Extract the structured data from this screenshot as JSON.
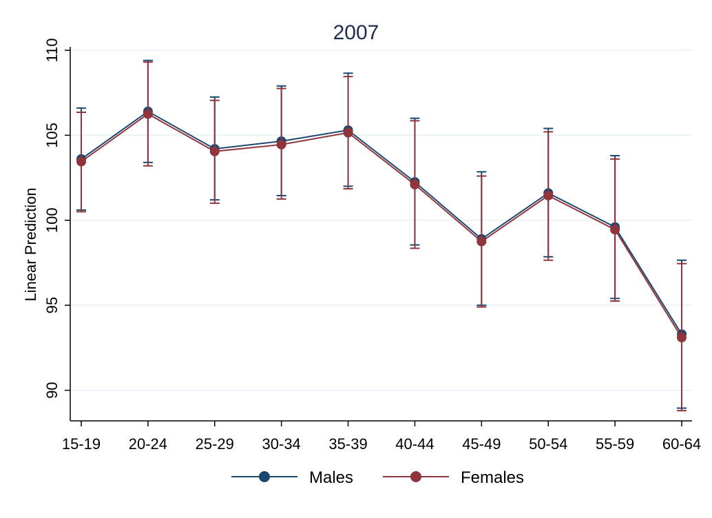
{
  "chart_data": {
    "type": "line",
    "title": "2007",
    "xlabel": "",
    "ylabel": "Linear Prediction",
    "categories": [
      "15-19",
      "20-24",
      "25-29",
      "30-34",
      "35-39",
      "40-44",
      "45-49",
      "50-54",
      "55-59",
      "60-64"
    ],
    "yticks": [
      90,
      95,
      100,
      105,
      110
    ],
    "ytick_labels": [
      "90",
      "95",
      "100",
      "105",
      "110"
    ],
    "ylim": [
      88.2,
      110.2
    ],
    "grid": "horizontal",
    "legend_position": "bottom",
    "series": [
      {
        "name": "Males",
        "color": "#1a476f",
        "values": [
          103.6,
          106.4,
          104.2,
          104.65,
          105.3,
          102.25,
          98.9,
          101.6,
          99.6,
          93.3
        ],
        "ci_upper": [
          106.6,
          109.4,
          107.25,
          107.9,
          108.65,
          106.0,
          102.85,
          105.4,
          103.8,
          97.65
        ],
        "ci_lower": [
          100.6,
          103.4,
          101.2,
          101.45,
          102.0,
          98.55,
          95.0,
          97.85,
          95.4,
          88.95
        ]
      },
      {
        "name": "Females",
        "color": "#90353b",
        "values": [
          103.45,
          106.25,
          104.05,
          104.45,
          105.15,
          102.1,
          98.75,
          101.45,
          99.45,
          93.1
        ],
        "ci_upper": [
          106.35,
          109.3,
          107.05,
          107.75,
          108.45,
          105.85,
          102.6,
          105.2,
          103.6,
          97.45
        ],
        "ci_lower": [
          100.5,
          103.2,
          101.0,
          101.25,
          101.85,
          98.35,
          94.9,
          97.65,
          95.25,
          88.8
        ]
      }
    ]
  }
}
